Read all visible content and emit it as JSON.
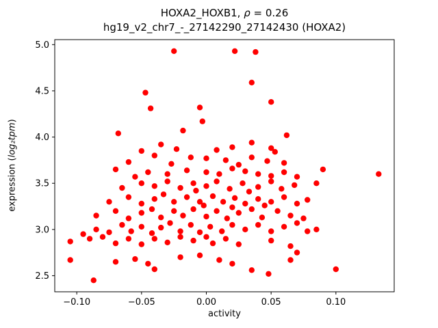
{
  "figure": {
    "title_prefix": "HOXA2_HOXB1, ",
    "title_rho": "ρ",
    "title_suffix": " = 0.26",
    "subtitle": "hg19_v2_chr7_-_27142290_27142430 (HOXA2)",
    "xlabel": "activity",
    "ylabel_prefix": "expression (",
    "ylabel_math": "log₂tpm",
    "ylabel_suffix": ")"
  },
  "chart_data": {
    "type": "scatter",
    "title": "HOXA2_HOXB1, ρ = 0.26",
    "subtitle": "hg19_v2_chr7_-_27142290_27142430 (HOXA2)",
    "xlabel": "activity",
    "ylabel": "expression (log2tpm)",
    "marker_color": "#ff0000",
    "axis_color": "#000000",
    "grid": false,
    "legend": "none",
    "xlim": [
      -0.117,
      0.145
    ],
    "ylim": [
      2.326,
      5.054
    ],
    "x_ticks": [
      -0.1,
      -0.05,
      0.0,
      0.05,
      0.1
    ],
    "y_ticks": [
      2.5,
      3.0,
      3.5,
      4.0,
      4.5,
      5.0
    ],
    "points": [
      [
        -0.025,
        4.93
      ],
      [
        0.022,
        4.93
      ],
      [
        0.038,
        4.92
      ],
      [
        0.035,
        4.59
      ],
      [
        -0.047,
        4.48
      ],
      [
        0.05,
        4.38
      ],
      [
        -0.043,
        4.31
      ],
      [
        -0.005,
        4.32
      ],
      [
        -0.003,
        4.17
      ],
      [
        -0.068,
        4.04
      ],
      [
        0.062,
        4.02
      ],
      [
        -0.018,
        4.07
      ],
      [
        -0.035,
        3.92
      ],
      [
        -0.023,
        3.87
      ],
      [
        0.02,
        3.89
      ],
      [
        0.035,
        3.94
      ],
      [
        0.05,
        3.88
      ],
      [
        0.053,
        3.84
      ],
      [
        0.008,
        3.86
      ],
      [
        -0.05,
        3.85
      ],
      [
        -0.04,
        3.8
      ],
      [
        -0.012,
        3.78
      ],
      [
        0.0,
        3.77
      ],
      [
        0.015,
        3.75
      ],
      [
        0.035,
        3.78
      ],
      [
        0.047,
        3.74
      ],
      [
        0.06,
        3.72
      ],
      [
        -0.06,
        3.73
      ],
      [
        -0.027,
        3.71
      ],
      [
        0.025,
        3.7
      ],
      [
        -0.07,
        3.65
      ],
      [
        -0.045,
        3.62
      ],
      [
        -0.03,
        3.6
      ],
      [
        -0.015,
        3.64
      ],
      [
        0.0,
        3.62
      ],
      [
        0.01,
        3.6
      ],
      [
        0.02,
        3.66
      ],
      [
        0.03,
        3.63
      ],
      [
        0.04,
        3.6
      ],
      [
        0.05,
        3.58
      ],
      [
        0.06,
        3.62
      ],
      [
        0.07,
        3.57
      ],
      [
        0.09,
        3.65
      ],
      [
        0.133,
        3.6
      ],
      [
        0.085,
        3.5
      ],
      [
        -0.055,
        3.57
      ],
      [
        -0.065,
        3.45
      ],
      [
        -0.05,
        3.5
      ],
      [
        -0.04,
        3.47
      ],
      [
        -0.03,
        3.52
      ],
      [
        -0.02,
        3.45
      ],
      [
        -0.01,
        3.5
      ],
      [
        0.0,
        3.47
      ],
      [
        0.008,
        3.52
      ],
      [
        0.018,
        3.44
      ],
      [
        0.028,
        3.5
      ],
      [
        0.04,
        3.46
      ],
      [
        0.05,
        3.52
      ],
      [
        0.058,
        3.44
      ],
      [
        0.068,
        3.48
      ],
      [
        -0.008,
        3.42
      ],
      [
        0.033,
        3.41
      ],
      [
        -0.075,
        3.3
      ],
      [
        -0.06,
        3.35
      ],
      [
        -0.05,
        3.28
      ],
      [
        -0.04,
        3.33
      ],
      [
        -0.033,
        3.38
      ],
      [
        -0.025,
        3.3
      ],
      [
        -0.015,
        3.35
      ],
      [
        -0.005,
        3.3
      ],
      [
        0.005,
        3.36
      ],
      [
        0.013,
        3.3
      ],
      [
        0.022,
        3.34
      ],
      [
        0.03,
        3.28
      ],
      [
        0.04,
        3.33
      ],
      [
        0.05,
        3.3
      ],
      [
        0.06,
        3.35
      ],
      [
        0.07,
        3.28
      ],
      [
        0.078,
        3.32
      ],
      [
        -0.002,
        3.26
      ],
      [
        0.045,
        3.26
      ],
      [
        -0.085,
        3.15
      ],
      [
        -0.07,
        3.2
      ],
      [
        -0.06,
        3.12
      ],
      [
        -0.05,
        3.18
      ],
      [
        -0.042,
        3.22
      ],
      [
        -0.035,
        3.13
      ],
      [
        -0.025,
        3.2
      ],
      [
        -0.018,
        3.15
      ],
      [
        -0.01,
        3.22
      ],
      [
        0.0,
        3.14
      ],
      [
        0.008,
        3.2
      ],
      [
        0.016,
        3.12
      ],
      [
        0.025,
        3.18
      ],
      [
        0.035,
        3.22
      ],
      [
        0.043,
        3.13
      ],
      [
        0.055,
        3.2
      ],
      [
        0.065,
        3.15
      ],
      [
        0.075,
        3.12
      ],
      [
        0.02,
        3.24
      ],
      [
        -0.095,
        2.95
      ],
      [
        -0.085,
        3.0
      ],
      [
        -0.075,
        2.97
      ],
      [
        -0.065,
        3.05
      ],
      [
        -0.058,
        2.98
      ],
      [
        -0.05,
        3.03
      ],
      [
        -0.042,
        2.96
      ],
      [
        -0.035,
        3.02
      ],
      [
        -0.028,
        3.07
      ],
      [
        -0.02,
        2.98
      ],
      [
        -0.012,
        3.05
      ],
      [
        -0.005,
        2.97
      ],
      [
        0.003,
        3.03
      ],
      [
        0.012,
        2.98
      ],
      [
        0.02,
        3.05
      ],
      [
        0.03,
        3.0
      ],
      [
        0.04,
        3.05
      ],
      [
        0.05,
        2.98
      ],
      [
        0.06,
        3.03
      ],
      [
        0.07,
        3.07
      ],
      [
        0.078,
        2.98
      ],
      [
        0.085,
        3.0
      ],
      [
        -0.105,
        2.87
      ],
      [
        -0.09,
        2.9
      ],
      [
        -0.08,
        2.92
      ],
      [
        -0.07,
        2.85
      ],
      [
        -0.06,
        2.9
      ],
      [
        -0.05,
        2.84
      ],
      [
        -0.04,
        2.9
      ],
      [
        -0.03,
        2.86
      ],
      [
        -0.02,
        2.92
      ],
      [
        -0.01,
        2.88
      ],
      [
        0.0,
        2.92
      ],
      [
        0.005,
        2.85
      ],
      [
        0.015,
        2.9
      ],
      [
        0.025,
        2.84
      ],
      [
        0.05,
        2.88
      ],
      [
        0.065,
        2.82
      ],
      [
        -0.105,
        2.67
      ],
      [
        -0.07,
        2.65
      ],
      [
        -0.055,
        2.68
      ],
      [
        -0.045,
        2.63
      ],
      [
        -0.02,
        2.7
      ],
      [
        -0.005,
        2.72
      ],
      [
        0.01,
        2.67
      ],
      [
        0.02,
        2.63
      ],
      [
        0.065,
        2.67
      ],
      [
        0.07,
        2.75
      ],
      [
        -0.087,
        2.45
      ],
      [
        -0.04,
        2.57
      ],
      [
        0.035,
        2.56
      ],
      [
        0.1,
        2.57
      ],
      [
        0.048,
        2.52
      ]
    ]
  }
}
